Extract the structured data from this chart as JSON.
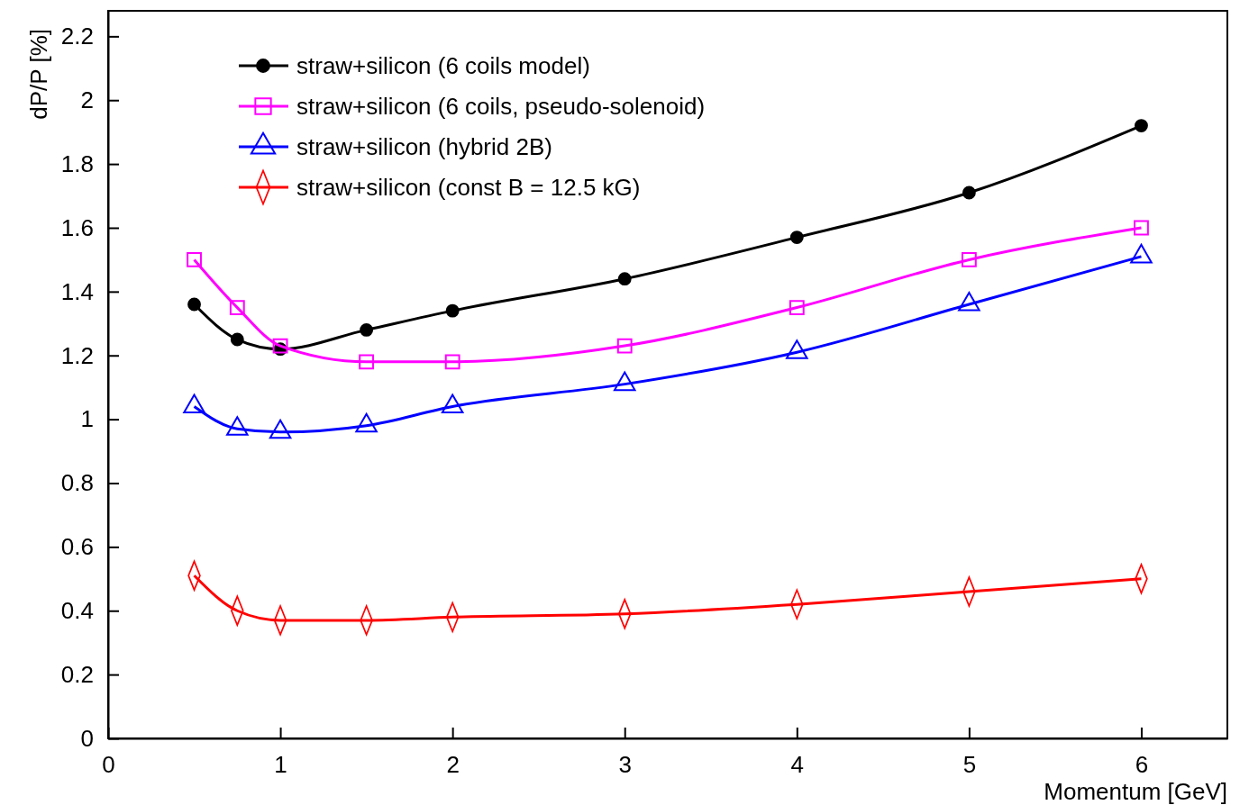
{
  "chart_data": {
    "type": "line",
    "xlabel": "Momentum [GeV]",
    "ylabel": "dP/P [%]",
    "x": [
      0.5,
      0.75,
      1,
      1.5,
      2,
      3,
      4,
      5,
      6
    ],
    "series": [
      {
        "name": "straw+silicon (6 coils model)",
        "color": "#000000",
        "marker": "circle",
        "values": [
          1.36,
          1.25,
          1.22,
          1.28,
          1.34,
          1.44,
          1.57,
          1.71,
          1.92
        ]
      },
      {
        "name": "straw+silicon (6 coils, pseudo-solenoid)",
        "color": "#ff00ff",
        "marker": "square",
        "values": [
          1.5,
          1.35,
          1.23,
          1.18,
          1.18,
          1.23,
          1.35,
          1.5,
          1.6
        ]
      },
      {
        "name": "straw+silicon (hybrid 2B)",
        "color": "#0000ff",
        "marker": "triangle",
        "values": [
          1.04,
          0.97,
          0.96,
          0.98,
          1.04,
          1.11,
          1.21,
          1.36,
          1.51
        ]
      },
      {
        "name": "straw+silicon (const B = 12.5 kG)",
        "color": "#ff0000",
        "marker": "diamond",
        "values": [
          0.51,
          0.4,
          0.37,
          0.37,
          0.38,
          0.39,
          0.42,
          0.46,
          0.5
        ]
      }
    ],
    "xlim": [
      0,
      6.5
    ],
    "ylim": [
      0,
      2.28
    ],
    "xticks": [
      0,
      1,
      2,
      3,
      4,
      5,
      6
    ],
    "yticks": [
      0,
      0.2,
      0.4,
      0.6,
      0.8,
      1,
      1.2,
      1.4,
      1.6,
      1.8,
      2,
      2.2
    ],
    "legend": "top left",
    "grid": false
  }
}
